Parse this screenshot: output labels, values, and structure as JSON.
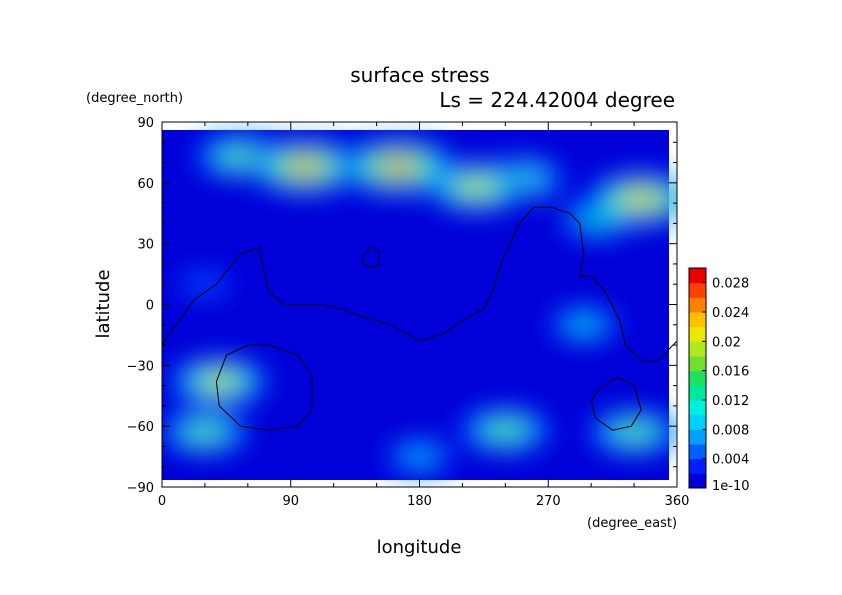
{
  "chart_data": {
    "type": "heatmap",
    "title": "surface stress",
    "subtitle": "Ls = 224.42004 degree",
    "xlabel": "longitude",
    "ylabel": "latitude",
    "x_units": "(degree_east)",
    "y_units": "(degree_north)",
    "xlim": [
      0,
      360
    ],
    "ylim": [
      -90,
      90
    ],
    "x_ticks": [
      "0",
      "90",
      "180",
      "270",
      "360"
    ],
    "y_ticks": [
      "90",
      "60",
      "30",
      "0",
      "−30",
      "−60",
      "−90"
    ],
    "colorbar": {
      "min": 1e-10,
      "max": 0.03,
      "labels": [
        "0.028",
        "0.024",
        "0.02",
        "0.016",
        "0.012",
        "0.008",
        "0.004",
        "1e-10"
      ],
      "label_values": [
        0.028,
        0.024,
        0.02,
        0.016,
        0.012,
        0.008,
        0.004,
        0
      ],
      "colors": [
        "#0000d8",
        "#0020ff",
        "#0060ff",
        "#00a0ff",
        "#00d0ff",
        "#00f0e0",
        "#00e8a0",
        "#20e060",
        "#70e030",
        "#b0e820",
        "#e8e800",
        "#ffc000",
        "#ff8000",
        "#ff4000",
        "#e80000"
      ]
    },
    "background_value": 0.001,
    "features": [
      {
        "lon": 100,
        "lat": 68,
        "value": 0.026
      },
      {
        "lon": 165,
        "lat": 68,
        "value": 0.027
      },
      {
        "lon": 55,
        "lat": 73,
        "value": 0.018
      },
      {
        "lon": 220,
        "lat": 58,
        "value": 0.022
      },
      {
        "lon": 250,
        "lat": 62,
        "value": 0.017
      },
      {
        "lon": 335,
        "lat": 52,
        "value": 0.024
      },
      {
        "lon": 305,
        "lat": 42,
        "value": 0.013
      },
      {
        "lon": 40,
        "lat": -38,
        "value": 0.021
      },
      {
        "lon": 240,
        "lat": -62,
        "value": 0.018
      },
      {
        "lon": 30,
        "lat": -63,
        "value": 0.017
      },
      {
        "lon": 330,
        "lat": -63,
        "value": 0.018
      },
      {
        "lon": 295,
        "lat": -10,
        "value": 0.011
      },
      {
        "lon": 30,
        "lat": 10,
        "value": 0.006
      },
      {
        "lon": 180,
        "lat": -75,
        "value": 0.01
      }
    ],
    "outlines": [
      {
        "name": "",
        "points": [
          [
            0,
            -20
          ],
          [
            10,
            -10
          ],
          [
            22,
            2
          ],
          [
            38,
            10
          ],
          [
            55,
            25
          ],
          [
            68,
            28
          ],
          [
            72,
            14
          ],
          [
            75,
            6
          ],
          [
            85,
            0
          ],
          [
            110,
            0
          ],
          [
            125,
            -2
          ],
          [
            140,
            -6
          ],
          [
            160,
            -10
          ],
          [
            180,
            -18
          ],
          [
            195,
            -15
          ],
          [
            210,
            -8
          ],
          [
            225,
            -2
          ],
          [
            232,
            8
          ],
          [
            238,
            22
          ],
          [
            250,
            40
          ],
          [
            260,
            48
          ],
          [
            272,
            48
          ],
          [
            285,
            45
          ],
          [
            292,
            40
          ],
          [
            295,
            24
          ],
          [
            292,
            14
          ],
          [
            300,
            14
          ],
          [
            310,
            6
          ],
          [
            320,
            -8
          ],
          [
            324,
            -20
          ],
          [
            336,
            -28
          ],
          [
            346,
            -28
          ],
          [
            360,
            -18
          ]
        ]
      },
      {
        "name": "",
        "points": [
          [
            140,
            24
          ],
          [
            146,
            28
          ],
          [
            152,
            26
          ],
          [
            152,
            20
          ],
          [
            146,
            18
          ],
          [
            140,
            21
          ],
          [
            140,
            24
          ]
        ]
      },
      {
        "name": "",
        "points": [
          [
            45,
            -25
          ],
          [
            60,
            -20
          ],
          [
            75,
            -20
          ],
          [
            95,
            -25
          ],
          [
            105,
            -35
          ],
          [
            105,
            -52
          ],
          [
            95,
            -60
          ],
          [
            75,
            -62
          ],
          [
            55,
            -60
          ],
          [
            40,
            -50
          ],
          [
            38,
            -38
          ],
          [
            45,
            -25
          ]
        ]
      },
      {
        "name": "",
        "points": [
          [
            305,
            -42
          ],
          [
            318,
            -36
          ],
          [
            330,
            -40
          ],
          [
            335,
            -52
          ],
          [
            328,
            -60
          ],
          [
            315,
            -62
          ],
          [
            303,
            -56
          ],
          [
            300,
            -48
          ],
          [
            305,
            -42
          ]
        ]
      }
    ]
  }
}
